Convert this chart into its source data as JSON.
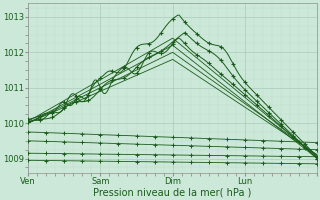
{
  "xlabel": "Pression niveau de la mer( hPa )",
  "bg_color": "#cce8d8",
  "grid_color_major": "#aaccbb",
  "grid_color_minor": "#bbddcc",
  "line_color": "#1a5c1a",
  "ylim": [
    1008.6,
    1013.4
  ],
  "xlim": [
    0,
    96
  ],
  "yticks": [
    1009,
    1010,
    1011,
    1012,
    1013
  ],
  "xtick_positions": [
    0,
    24,
    48,
    72,
    96
  ],
  "xtick_labels": [
    "Ven",
    "Sam",
    "Dim",
    "Lun",
    ""
  ]
}
